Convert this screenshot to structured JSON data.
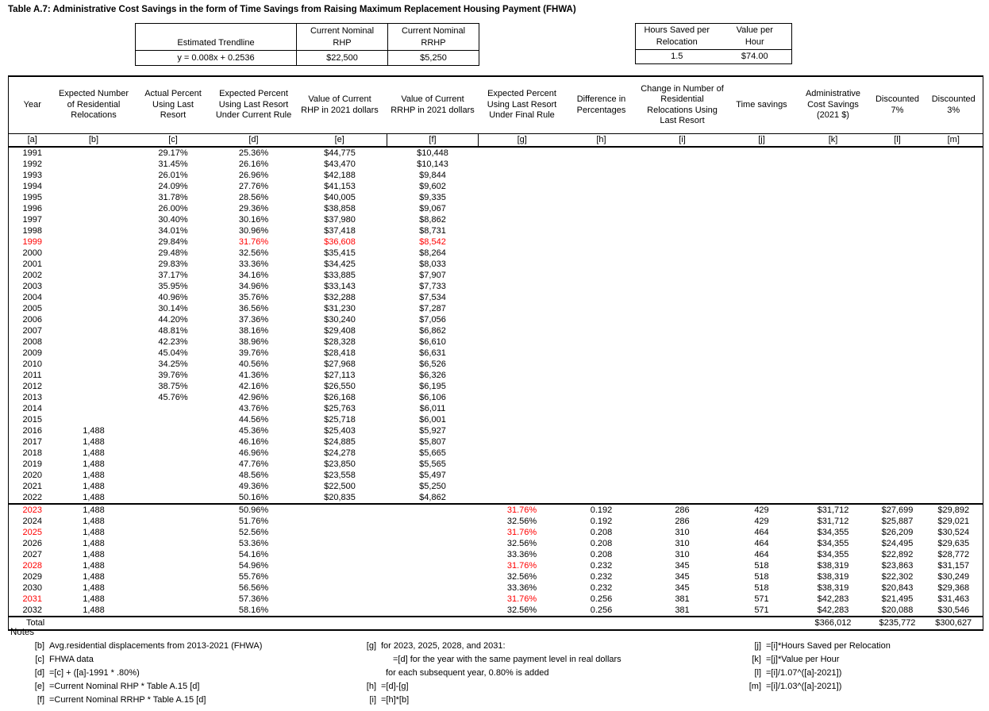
{
  "title": "Table A.7: Administrative Cost Savings in the form of Time Savings from Raising Maximum Replacement Housing Payment (FHWA)",
  "colors": {
    "highlight_red": "#ff0000",
    "border": "#000000"
  },
  "params_left": {
    "col1_header": "Estimated Trendline",
    "col2_header": "Current Nominal\nRHP",
    "col3_header": "Current Nominal\nRRHP",
    "values": [
      "y = 0.008x + 0.2536",
      "$22,500",
      "$5,250"
    ]
  },
  "params_right": {
    "col1_header": "Hours Saved per\nRelocation",
    "col2_header": "Value per\nHour",
    "values": [
      "1.5",
      "$74.00"
    ]
  },
  "table": {
    "headers": [
      "Year",
      "Expected Number\nof Residential\nRelocations",
      "Actual Percent\nUsing Last\nResort",
      "Expected Percent\nUsing Last Resort\nUnder Current Rule",
      "Value of Current\nRHP in 2021 dollars",
      "Value of Current\nRRHP in 2021 dollars",
      "Expected Percent\nUsing Last Resort\nUnder Final Rule",
      "Difference in\nPercentages",
      "Change in Number of\nResidential\nRelocations Using\nLast Resort",
      "Time savings",
      "Administrative\nCost Savings\n(2021 $)",
      "Discounted\n7%",
      "Discounted\n3%"
    ],
    "col_labels": [
      "[a]",
      "[b]",
      "[c]",
      "[d]",
      "[e]",
      "[f]",
      "[g]",
      "[h]",
      "[i]",
      "[j]",
      "[k]",
      "[l]",
      "[m]"
    ],
    "rows": [
      {
        "cells": [
          "1991",
          "",
          "29.17%",
          "25.36%",
          "$44,775",
          "$10,448",
          "",
          "",
          "",
          "",
          "",
          "",
          ""
        ],
        "red": []
      },
      {
        "cells": [
          "1992",
          "",
          "31.45%",
          "26.16%",
          "$43,470",
          "$10,143",
          "",
          "",
          "",
          "",
          "",
          "",
          ""
        ],
        "red": []
      },
      {
        "cells": [
          "1993",
          "",
          "26.01%",
          "26.96%",
          "$42,188",
          "$9,844",
          "",
          "",
          "",
          "",
          "",
          "",
          ""
        ],
        "red": []
      },
      {
        "cells": [
          "1994",
          "",
          "24.09%",
          "27.76%",
          "$41,153",
          "$9,602",
          "",
          "",
          "",
          "",
          "",
          "",
          ""
        ],
        "red": []
      },
      {
        "cells": [
          "1995",
          "",
          "31.78%",
          "28.56%",
          "$40,005",
          "$9,335",
          "",
          "",
          "",
          "",
          "",
          "",
          ""
        ],
        "red": []
      },
      {
        "cells": [
          "1996",
          "",
          "26.00%",
          "29.36%",
          "$38,858",
          "$9,067",
          "",
          "",
          "",
          "",
          "",
          "",
          ""
        ],
        "red": []
      },
      {
        "cells": [
          "1997",
          "",
          "30.40%",
          "30.16%",
          "$37,980",
          "$8,862",
          "",
          "",
          "",
          "",
          "",
          "",
          ""
        ],
        "red": []
      },
      {
        "cells": [
          "1998",
          "",
          "34.01%",
          "30.96%",
          "$37,418",
          "$8,731",
          "",
          "",
          "",
          "",
          "",
          "",
          ""
        ],
        "red": []
      },
      {
        "cells": [
          "1999",
          "",
          "29.84%",
          "31.76%",
          "$36,608",
          "$8,542",
          "",
          "",
          "",
          "",
          "",
          "",
          ""
        ],
        "red": [
          0,
          3,
          4,
          5
        ]
      },
      {
        "cells": [
          "2000",
          "",
          "29.48%",
          "32.56%",
          "$35,415",
          "$8,264",
          "",
          "",
          "",
          "",
          "",
          "",
          ""
        ],
        "red": []
      },
      {
        "cells": [
          "2001",
          "",
          "29.83%",
          "33.36%",
          "$34,425",
          "$8,033",
          "",
          "",
          "",
          "",
          "",
          "",
          ""
        ],
        "red": []
      },
      {
        "cells": [
          "2002",
          "",
          "37.17%",
          "34.16%",
          "$33,885",
          "$7,907",
          "",
          "",
          "",
          "",
          "",
          "",
          ""
        ],
        "red": []
      },
      {
        "cells": [
          "2003",
          "",
          "35.95%",
          "34.96%",
          "$33,143",
          "$7,733",
          "",
          "",
          "",
          "",
          "",
          "",
          ""
        ],
        "red": []
      },
      {
        "cells": [
          "2004",
          "",
          "40.96%",
          "35.76%",
          "$32,288",
          "$7,534",
          "",
          "",
          "",
          "",
          "",
          "",
          ""
        ],
        "red": []
      },
      {
        "cells": [
          "2005",
          "",
          "30.14%",
          "36.56%",
          "$31,230",
          "$7,287",
          "",
          "",
          "",
          "",
          "",
          "",
          ""
        ],
        "red": []
      },
      {
        "cells": [
          "2006",
          "",
          "44.20%",
          "37.36%",
          "$30,240",
          "$7,056",
          "",
          "",
          "",
          "",
          "",
          "",
          ""
        ],
        "red": []
      },
      {
        "cells": [
          "2007",
          "",
          "48.81%",
          "38.16%",
          "$29,408",
          "$6,862",
          "",
          "",
          "",
          "",
          "",
          "",
          ""
        ],
        "red": []
      },
      {
        "cells": [
          "2008",
          "",
          "42.23%",
          "38.96%",
          "$28,328",
          "$6,610",
          "",
          "",
          "",
          "",
          "",
          "",
          ""
        ],
        "red": []
      },
      {
        "cells": [
          "2009",
          "",
          "45.04%",
          "39.76%",
          "$28,418",
          "$6,631",
          "",
          "",
          "",
          "",
          "",
          "",
          ""
        ],
        "red": []
      },
      {
        "cells": [
          "2010",
          "",
          "34.25%",
          "40.56%",
          "$27,968",
          "$6,526",
          "",
          "",
          "",
          "",
          "",
          "",
          ""
        ],
        "red": []
      },
      {
        "cells": [
          "2011",
          "",
          "39.76%",
          "41.36%",
          "$27,113",
          "$6,326",
          "",
          "",
          "",
          "",
          "",
          "",
          ""
        ],
        "red": []
      },
      {
        "cells": [
          "2012",
          "",
          "38.75%",
          "42.16%",
          "$26,550",
          "$6,195",
          "",
          "",
          "",
          "",
          "",
          "",
          ""
        ],
        "red": []
      },
      {
        "cells": [
          "2013",
          "",
          "45.76%",
          "42.96%",
          "$26,168",
          "$6,106",
          "",
          "",
          "",
          "",
          "",
          "",
          ""
        ],
        "red": []
      },
      {
        "cells": [
          "2014",
          "",
          "",
          "43.76%",
          "$25,763",
          "$6,011",
          "",
          "",
          "",
          "",
          "",
          "",
          ""
        ],
        "red": []
      },
      {
        "cells": [
          "2015",
          "",
          "",
          "44.56%",
          "$25,718",
          "$6,001",
          "",
          "",
          "",
          "",
          "",
          "",
          ""
        ],
        "red": []
      },
      {
        "cells": [
          "2016",
          "1,488",
          "",
          "45.36%",
          "$25,403",
          "$5,927",
          "",
          "",
          "",
          "",
          "",
          "",
          ""
        ],
        "red": []
      },
      {
        "cells": [
          "2017",
          "1,488",
          "",
          "46.16%",
          "$24,885",
          "$5,807",
          "",
          "",
          "",
          "",
          "",
          "",
          ""
        ],
        "red": []
      },
      {
        "cells": [
          "2018",
          "1,488",
          "",
          "46.96%",
          "$24,278",
          "$5,665",
          "",
          "",
          "",
          "",
          "",
          "",
          ""
        ],
        "red": []
      },
      {
        "cells": [
          "2019",
          "1,488",
          "",
          "47.76%",
          "$23,850",
          "$5,565",
          "",
          "",
          "",
          "",
          "",
          "",
          ""
        ],
        "red": []
      },
      {
        "cells": [
          "2020",
          "1,488",
          "",
          "48.56%",
          "$23,558",
          "$5,497",
          "",
          "",
          "",
          "",
          "",
          "",
          ""
        ],
        "red": []
      },
      {
        "cells": [
          "2021",
          "1,488",
          "",
          "49.36%",
          "$22,500",
          "$5,250",
          "",
          "",
          "",
          "",
          "",
          "",
          ""
        ],
        "red": []
      },
      {
        "cells": [
          "2022",
          "1,488",
          "",
          "50.16%",
          "$20,835",
          "$4,862",
          "",
          "",
          "",
          "",
          "",
          "",
          ""
        ],
        "red": []
      },
      {
        "cells": [
          "2023",
          "1,488",
          "",
          "50.96%",
          "",
          "",
          "31.76%",
          "0.192",
          "286",
          "429",
          "$31,712",
          "$27,699",
          "$29,892"
        ],
        "red": [
          0,
          6
        ],
        "sep": true
      },
      {
        "cells": [
          "2024",
          "1,488",
          "",
          "51.76%",
          "",
          "",
          "32.56%",
          "0.192",
          "286",
          "429",
          "$31,712",
          "$25,887",
          "$29,021"
        ],
        "red": []
      },
      {
        "cells": [
          "2025",
          "1,488",
          "",
          "52.56%",
          "",
          "",
          "31.76%",
          "0.208",
          "310",
          "464",
          "$34,355",
          "$26,209",
          "$30,524"
        ],
        "red": [
          0,
          6
        ]
      },
      {
        "cells": [
          "2026",
          "1,488",
          "",
          "53.36%",
          "",
          "",
          "32.56%",
          "0.208",
          "310",
          "464",
          "$34,355",
          "$24,495",
          "$29,635"
        ],
        "red": []
      },
      {
        "cells": [
          "2027",
          "1,488",
          "",
          "54.16%",
          "",
          "",
          "33.36%",
          "0.208",
          "310",
          "464",
          "$34,355",
          "$22,892",
          "$28,772"
        ],
        "red": []
      },
      {
        "cells": [
          "2028",
          "1,488",
          "",
          "54.96%",
          "",
          "",
          "31.76%",
          "0.232",
          "345",
          "518",
          "$38,319",
          "$23,863",
          "$31,157"
        ],
        "red": [
          0,
          6
        ]
      },
      {
        "cells": [
          "2029",
          "1,488",
          "",
          "55.76%",
          "",
          "",
          "32.56%",
          "0.232",
          "345",
          "518",
          "$38,319",
          "$22,302",
          "$30,249"
        ],
        "red": []
      },
      {
        "cells": [
          "2030",
          "1,488",
          "",
          "56.56%",
          "",
          "",
          "33.36%",
          "0.232",
          "345",
          "518",
          "$38,319",
          "$20,843",
          "$29,368"
        ],
        "red": []
      },
      {
        "cells": [
          "2031",
          "1,488",
          "",
          "57.36%",
          "",
          "",
          "31.76%",
          "0.256",
          "381",
          "571",
          "$42,283",
          "$21,495",
          "$31,463"
        ],
        "red": [
          0,
          6
        ]
      },
      {
        "cells": [
          "2032",
          "1,488",
          "",
          "58.16%",
          "",
          "",
          "32.56%",
          "0.256",
          "381",
          "571",
          "$42,283",
          "$20,088",
          "$30,546"
        ],
        "red": []
      }
    ],
    "total_row": {
      "cells": [
        "Total",
        "",
        "",
        "",
        "",
        "",
        "",
        "",
        "",
        "",
        "$366,012",
        "$235,772",
        "$300,627"
      ]
    }
  },
  "notes": {
    "heading": "Notes",
    "col1": [
      {
        "label": "[b]",
        "text": "Avg.residential displacements from 2013-2021 (FHWA)"
      },
      {
        "label": "[c]",
        "text": "FHWA data"
      },
      {
        "label": "[d]",
        "text": "=[c] + ([a]-1991 * .80%)"
      },
      {
        "label": "[e]",
        "text": "=Current Nominal RHP * Table A.15 [d]"
      },
      {
        "label": "[f]",
        "text": "=Current Nominal RRHP * Table A.15 [d]"
      }
    ],
    "col2": [
      {
        "label": "[g]",
        "text": "for 2023, 2025, 2028, and 2031:",
        "indent": 0
      },
      {
        "label": "",
        "text": "=[d] for the year with the same payment level in real dollars",
        "indent": 2
      },
      {
        "label": "",
        "text": "for each subsequent year, 0.80% is added",
        "indent": 1
      },
      {
        "label": "[h]",
        "text": "=[d]-[g]",
        "indent": 0
      },
      {
        "label": "[i]",
        "text": "=[h]*[b]",
        "indent": 0
      }
    ],
    "col3": [
      {
        "label": "[j]",
        "text": "=[i]*Hours Saved per Relocation"
      },
      {
        "label": "[k]",
        "text": "=[j]*Value per Hour"
      },
      {
        "label": "[l]",
        "text": "=[i]/1.07^([a]-2021])"
      },
      {
        "label": "[m]",
        "text": "=[i]/1.03^([a]-2021])"
      }
    ]
  }
}
